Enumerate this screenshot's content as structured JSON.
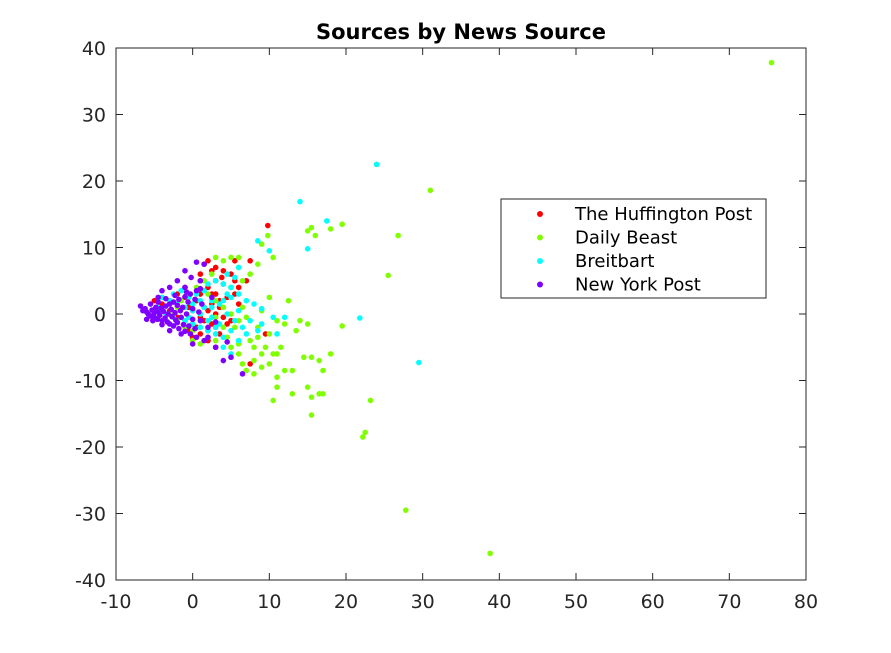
{
  "chart_data": {
    "type": "scatter",
    "title": "Sources by News Source",
    "xlabel": "",
    "ylabel": "",
    "xlim": [
      -10,
      80
    ],
    "ylim": [
      -40,
      40
    ],
    "xticks": [
      -10,
      0,
      10,
      20,
      30,
      40,
      50,
      60,
      70,
      80
    ],
    "yticks": [
      -40,
      -30,
      -20,
      -10,
      0,
      10,
      20,
      30,
      40
    ],
    "xtick_labels": [
      "-10",
      "0",
      "10",
      "20",
      "30",
      "40",
      "50",
      "60",
      "70",
      "80"
    ],
    "ytick_labels": [
      "-40",
      "-30",
      "-20",
      "-10",
      "0",
      "10",
      "20",
      "30",
      "40"
    ],
    "grid": false,
    "legend_position": "right, upper-middle",
    "series": [
      {
        "name": "The Huffington Post",
        "color": "#ff0000",
        "points": [
          [
            1.5,
            7.5
          ],
          [
            2,
            8
          ],
          [
            2.5,
            6.5
          ],
          [
            3,
            7
          ],
          [
            3.8,
            5.5
          ],
          [
            5,
            6
          ],
          [
            5.5,
            8
          ],
          [
            7.5,
            8
          ],
          [
            9.8,
            13.3
          ],
          [
            1,
            5
          ],
          [
            2,
            4
          ],
          [
            3,
            3
          ],
          [
            4,
            4.5
          ],
          [
            5.5,
            3
          ],
          [
            6,
            1.5
          ],
          [
            3.5,
            2
          ],
          [
            2.5,
            1.5
          ],
          [
            1,
            3
          ],
          [
            0.5,
            2
          ],
          [
            2,
            0.5
          ],
          [
            3,
            0
          ],
          [
            4,
            -0.5
          ],
          [
            5,
            -1
          ],
          [
            1.5,
            -1
          ],
          [
            0.5,
            -2
          ],
          [
            2,
            -2.5
          ],
          [
            3.5,
            -3
          ],
          [
            4.5,
            -1.5
          ],
          [
            -0.5,
            1
          ],
          [
            -1,
            2.5
          ],
          [
            -2,
            3
          ],
          [
            -3,
            2
          ],
          [
            -3,
            0.5
          ],
          [
            -2,
            -0.5
          ],
          [
            -1,
            -1
          ],
          [
            0,
            -1.5
          ],
          [
            1,
            -0.5
          ],
          [
            2.5,
            -1.5
          ],
          [
            3.5,
            1
          ],
          [
            4.5,
            2.5
          ],
          [
            6,
            4
          ],
          [
            7,
            5
          ],
          [
            5.5,
            5
          ],
          [
            4,
            6.5
          ],
          [
            3,
            5
          ],
          [
            1,
            6
          ],
          [
            -1,
            4
          ],
          [
            -4,
            1.5
          ],
          [
            -5,
            2
          ],
          [
            1,
            -3
          ],
          [
            0,
            -3.5
          ],
          [
            2,
            -4
          ],
          [
            3,
            -5
          ],
          [
            9.5,
            -3
          ],
          [
            7.5,
            -7.5
          ],
          [
            -0.5,
            -2.5
          ],
          [
            0,
            0.5
          ],
          [
            1.5,
            1
          ],
          [
            2.5,
            3
          ],
          [
            3,
            -2
          ]
        ]
      },
      {
        "name": "Daily Beast",
        "color": "#80ff00",
        "points": [
          [
            75.5,
            37.8
          ],
          [
            31,
            18.6
          ],
          [
            26.8,
            11.8
          ],
          [
            25.5,
            5.8
          ],
          [
            19.5,
            13.5
          ],
          [
            18,
            12.8
          ],
          [
            15.5,
            13
          ],
          [
            15,
            12.5
          ],
          [
            16,
            11.8
          ],
          [
            24,
            22.5
          ],
          [
            9.8,
            11.8
          ],
          [
            9,
            10.5
          ],
          [
            8.5,
            7.5
          ],
          [
            10.5,
            8.5
          ],
          [
            12.5,
            2
          ],
          [
            10,
            2.5
          ],
          [
            9,
            0.5
          ],
          [
            11,
            -1
          ],
          [
            12,
            -1.5
          ],
          [
            14,
            -1
          ],
          [
            15,
            -1.5
          ],
          [
            19.5,
            -1.8
          ],
          [
            13.5,
            -2.5
          ],
          [
            8.5,
            -2
          ],
          [
            8,
            -5
          ],
          [
            9,
            -6
          ],
          [
            10,
            -7.5
          ],
          [
            11,
            -6
          ],
          [
            13,
            -8.5
          ],
          [
            14.5,
            -6.5
          ],
          [
            15.5,
            -6.5
          ],
          [
            16.5,
            -7
          ],
          [
            17,
            -8.5
          ],
          [
            18,
            -6
          ],
          [
            12,
            -8.5
          ],
          [
            11,
            -11
          ],
          [
            13,
            -12
          ],
          [
            15,
            -11
          ],
          [
            15.5,
            -12.5
          ],
          [
            16.5,
            -12
          ],
          [
            10.5,
            -13
          ],
          [
            15.5,
            -15.2
          ],
          [
            23.2,
            -13
          ],
          [
            22.5,
            -17.8
          ],
          [
            22.2,
            -18.5
          ],
          [
            27.8,
            -29.5
          ],
          [
            38.8,
            -36
          ],
          [
            8,
            -9
          ],
          [
            7,
            -8.5
          ],
          [
            6.5,
            -7.5
          ],
          [
            6,
            -6
          ],
          [
            5,
            -5
          ],
          [
            6,
            -4.5
          ],
          [
            4.5,
            -3.5
          ],
          [
            5.5,
            -2
          ],
          [
            6,
            -1
          ],
          [
            7,
            -0.5
          ],
          [
            6.5,
            1
          ],
          [
            5,
            0
          ],
          [
            4,
            1
          ],
          [
            3,
            2
          ],
          [
            2,
            3
          ],
          [
            5,
            4
          ],
          [
            6.5,
            5
          ],
          [
            7.5,
            6
          ],
          [
            6,
            7
          ],
          [
            5,
            8.5
          ],
          [
            6,
            8.5
          ],
          [
            4,
            8
          ],
          [
            3,
            8.5
          ],
          [
            2.5,
            6
          ],
          [
            1.5,
            5
          ],
          [
            0.5,
            4
          ],
          [
            -0.5,
            3
          ],
          [
            -1.5,
            2
          ],
          [
            -2,
            1
          ],
          [
            -3,
            0
          ],
          [
            -2,
            -1
          ],
          [
            -1,
            -2
          ],
          [
            0,
            -2.5
          ],
          [
            1,
            -2
          ],
          [
            2,
            -1
          ],
          [
            3,
            -0.5
          ],
          [
            4,
            -2
          ],
          [
            3,
            -4
          ],
          [
            2,
            -3.5
          ],
          [
            1,
            -4.5
          ],
          [
            0,
            -4
          ],
          [
            7.5,
            -4
          ],
          [
            8.5,
            -3.5
          ],
          [
            9.5,
            -5
          ],
          [
            10.5,
            -6
          ],
          [
            11.5,
            -5
          ],
          [
            10,
            -3
          ],
          [
            11,
            -9.5
          ],
          [
            9,
            -8
          ],
          [
            8,
            -7
          ],
          [
            17,
            -12
          ]
        ]
      },
      {
        "name": "Breitbart",
        "color": "#00ffff",
        "points": [
          [
            24,
            22.5
          ],
          [
            14,
            16.9
          ],
          [
            17.5,
            14
          ],
          [
            15,
            9.8
          ],
          [
            8.5,
            11
          ],
          [
            10,
            9.5
          ],
          [
            6,
            7
          ],
          [
            5.5,
            5.5
          ],
          [
            4.5,
            6
          ],
          [
            5,
            4
          ],
          [
            6,
            3
          ],
          [
            7,
            2
          ],
          [
            8,
            1.5
          ],
          [
            9,
            0.8
          ],
          [
            10.5,
            -0.5
          ],
          [
            12,
            -0.5
          ],
          [
            21.8,
            -0.6
          ],
          [
            11,
            -3
          ],
          [
            6.5,
            -2
          ],
          [
            5.5,
            -1
          ],
          [
            4.5,
            0
          ],
          [
            3.5,
            -1.5
          ],
          [
            2.5,
            -0.5
          ],
          [
            1,
            0
          ],
          [
            0,
            0.5
          ],
          [
            -1,
            1
          ],
          [
            -2,
            1.5
          ],
          [
            -3,
            2
          ],
          [
            -4,
            2.5
          ],
          [
            -4.5,
            1
          ],
          [
            -5,
            0.5
          ],
          [
            -3.5,
            0
          ],
          [
            -2.5,
            -0.5
          ],
          [
            -1,
            -1
          ],
          [
            0,
            -1.5
          ],
          [
            1,
            -2
          ],
          [
            2,
            -2.5
          ],
          [
            3,
            -3
          ],
          [
            4,
            -3.5
          ],
          [
            5,
            -2.5
          ],
          [
            6,
            -4
          ],
          [
            7,
            -3
          ],
          [
            29.5,
            -7.3
          ],
          [
            0.5,
            3
          ],
          [
            1.5,
            3.5
          ],
          [
            2.5,
            2
          ],
          [
            3.5,
            1.5
          ],
          [
            1.5,
            1
          ],
          [
            -0.5,
            2.5
          ],
          [
            -1.5,
            3.5
          ],
          [
            -2.5,
            3
          ],
          [
            0,
            1.5
          ],
          [
            2,
            4.5
          ],
          [
            3,
            5
          ],
          [
            4,
            4.5
          ],
          [
            5,
            2.5
          ],
          [
            6,
            0.5
          ],
          [
            7.5,
            -1
          ],
          [
            8.5,
            -2.5
          ],
          [
            9,
            -1.5
          ],
          [
            4,
            -5
          ],
          [
            5,
            -6
          ],
          [
            2,
            -1
          ],
          [
            3,
            -2
          ],
          [
            -0.5,
            -0.5
          ],
          [
            1,
            2
          ],
          [
            2.5,
            1
          ],
          [
            4,
            2
          ],
          [
            4.5,
            3
          ]
        ]
      },
      {
        "name": "New York Post",
        "color": "#8000ff",
        "points": [
          [
            -6.5,
            0.5
          ],
          [
            -6.2,
            0.8
          ],
          [
            -6,
            0.3
          ],
          [
            -5.8,
            0
          ],
          [
            -5.5,
            -0.3
          ],
          [
            -5.3,
            0.6
          ],
          [
            -5,
            0.2
          ],
          [
            -5,
            -0.5
          ],
          [
            -4.8,
            1
          ],
          [
            -4.6,
            -0.8
          ],
          [
            -4.5,
            0.3
          ],
          [
            -4.3,
            -0.2
          ],
          [
            -4.1,
            0.9
          ],
          [
            -4,
            -1
          ],
          [
            -3.8,
            0.4
          ],
          [
            -3.6,
            -0.6
          ],
          [
            -3.5,
            1.2
          ],
          [
            -3.3,
            -1.2
          ],
          [
            -3.2,
            0
          ],
          [
            -3,
            1.5
          ],
          [
            -3,
            -1.5
          ],
          [
            -2.8,
            0.7
          ],
          [
            -2.7,
            -0.4
          ],
          [
            -2.5,
            1.8
          ],
          [
            -2.5,
            -1.8
          ],
          [
            -2.3,
            0.2
          ],
          [
            -2.2,
            -0.9
          ],
          [
            -2,
            1.3
          ],
          [
            -2,
            -1.3
          ],
          [
            -1.8,
            2.2
          ],
          [
            -1.8,
            -2.2
          ],
          [
            -1.6,
            0.5
          ],
          [
            -1.5,
            -0.5
          ],
          [
            -1.3,
            1
          ],
          [
            -1.2,
            -1.6
          ],
          [
            -1,
            2.6
          ],
          [
            -1,
            -2.6
          ],
          [
            -0.8,
            0
          ],
          [
            -0.6,
            1.8
          ],
          [
            -0.5,
            -1.8
          ],
          [
            -0.3,
            3
          ],
          [
            -0.3,
            -3
          ],
          [
            0,
            0.8
          ],
          [
            0,
            -0.8
          ],
          [
            0.3,
            2.2
          ],
          [
            0.3,
            -2.2
          ],
          [
            0.5,
            3.5
          ],
          [
            0.5,
            -3.5
          ],
          [
            0.8,
            0.3
          ],
          [
            1,
            -1
          ],
          [
            1.2,
            1.5
          ],
          [
            1.5,
            -4
          ],
          [
            2,
            -2
          ],
          [
            2.5,
            2.5
          ],
          [
            3,
            -5
          ],
          [
            4,
            -7
          ],
          [
            5,
            -6.5
          ],
          [
            6.5,
            -9
          ],
          [
            -6.8,
            1.2
          ],
          [
            -6,
            -0.8
          ],
          [
            -5.5,
            1.5
          ],
          [
            -5.2,
            -1
          ],
          [
            -4.5,
            1.8
          ],
          [
            -4,
            -1.6
          ],
          [
            -3.5,
            2.3
          ],
          [
            -3,
            -2.5
          ],
          [
            -2.3,
            2.8
          ],
          [
            -1.5,
            -3
          ],
          [
            -0.8,
            3.3
          ],
          [
            0,
            -4.5
          ],
          [
            1,
            5
          ],
          [
            1.5,
            7.5
          ],
          [
            0.5,
            7.8
          ],
          [
            -1,
            6.5
          ],
          [
            -2,
            5
          ],
          [
            -3,
            4
          ],
          [
            -4,
            3.5
          ],
          [
            -4.5,
            2.5
          ],
          [
            2,
            -3.5
          ],
          [
            3,
            -1.2
          ],
          [
            4.5,
            -4.2
          ],
          [
            -1,
            4
          ],
          [
            -0.2,
            5.5
          ],
          [
            1,
            3.8
          ]
        ]
      }
    ]
  }
}
